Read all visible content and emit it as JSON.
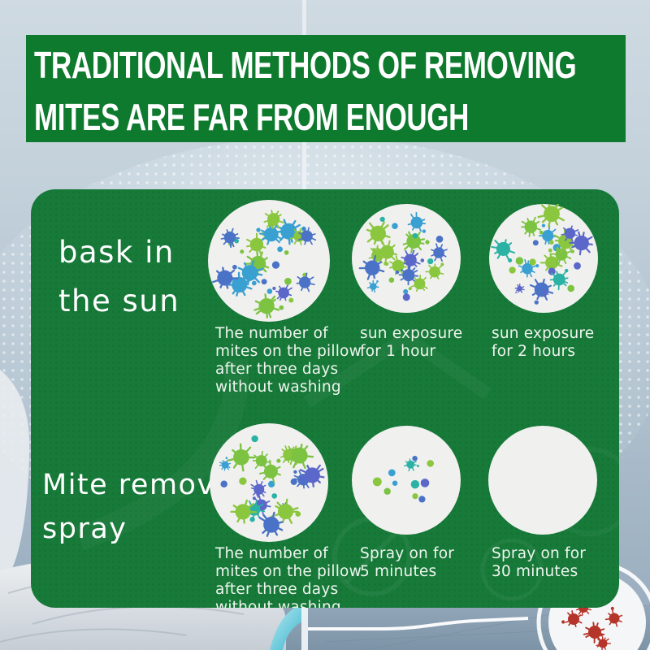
{
  "banner": {
    "line1": "TRADITIONAL METHODS OF REMOVING",
    "line2": "MITES ARE FAR FROM ENOUGH",
    "bg_color": "#0e7a2e",
    "text_color": "#ffffff"
  },
  "panel": {
    "bg_color": "#177a39",
    "text_color": "#ffffff",
    "rows": [
      {
        "label_lines": [
          "bask in",
          "the sun"
        ],
        "items": [
          {
            "caption_lines": [
              "The number of",
              "mites on the pillow",
              "after three days",
              "without washing"
            ],
            "mite_count": 26,
            "distribution": "spread",
            "size_profile": "mixed"
          },
          {
            "caption_lines": [
              "sun exposure",
              "for 1 hour"
            ],
            "mite_count": 21,
            "distribution": "spread",
            "size_profile": "mixed"
          },
          {
            "caption_lines": [
              "sun exposure",
              "for 2 hours"
            ],
            "mite_count": 22,
            "distribution": "spread",
            "size_profile": "mixed"
          }
        ]
      },
      {
        "label_lines": [
          "Mite removal",
          "spray"
        ],
        "items": [
          {
            "caption_lines": [
              "The number of",
              "mites on the pillow",
              "after three days",
              "without washing"
            ],
            "mite_count": 26,
            "distribution": "spread",
            "size_profile": "mixed"
          },
          {
            "caption_lines": [
              "Spray on for",
              "5 minutes"
            ],
            "mite_count": 11,
            "distribution": "cluster",
            "size_profile": "small"
          },
          {
            "caption_lines": [
              "Spray on for",
              "30 minutes"
            ],
            "mite_count": 0,
            "distribution": "empty",
            "size_profile": "none"
          }
        ]
      }
    ]
  },
  "petri_fill": "#f0f0ee",
  "mite_colors": [
    "#4a72c6",
    "#2bb2a4",
    "#7cc342",
    "#3a9fd1",
    "#8bc63f",
    "#5b67c9"
  ],
  "magnifier_mite_color": "#b5352a"
}
